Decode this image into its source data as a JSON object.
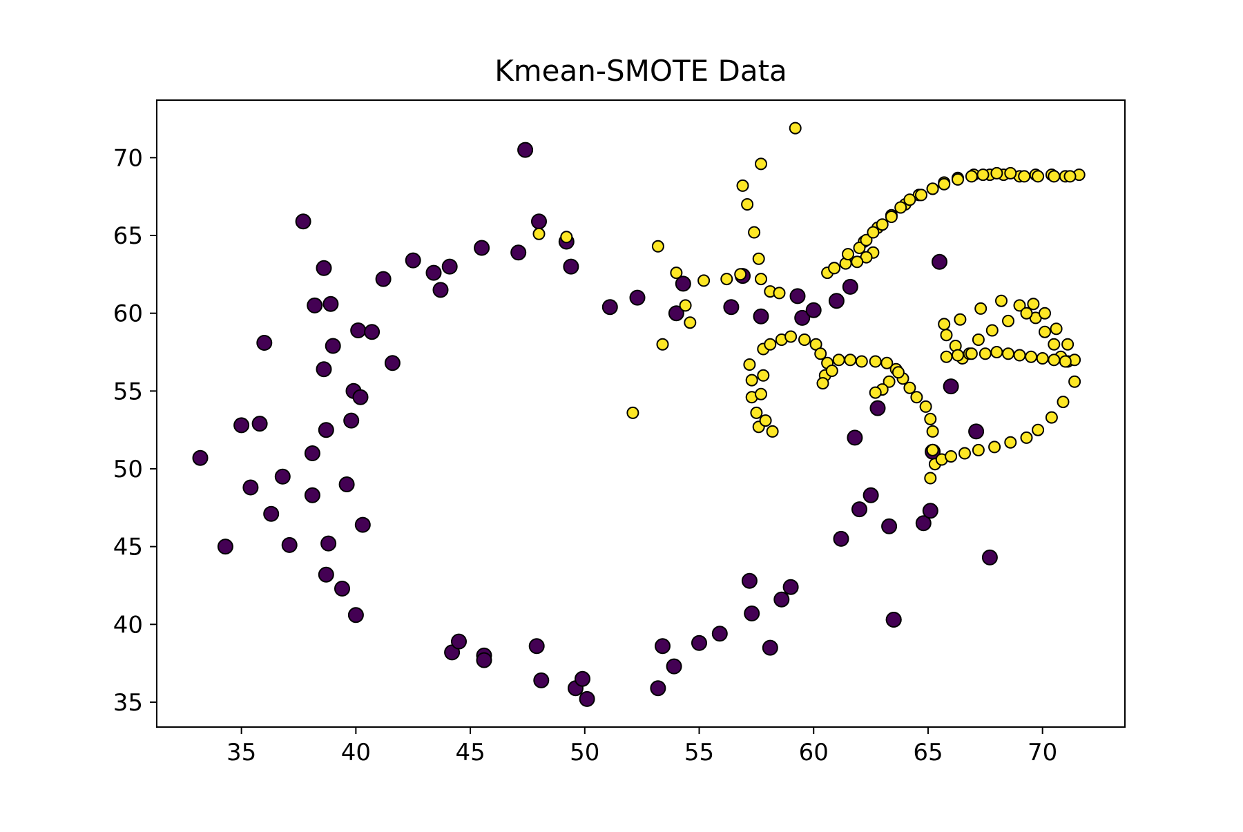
{
  "chart_data": {
    "type": "scatter",
    "title": "Kmean-SMOTE Data",
    "xlabel": "",
    "ylabel": "",
    "xlim": [
      31.3,
      73.6
    ],
    "ylim": [
      33.4,
      73.7
    ],
    "xticks": [
      35,
      40,
      45,
      50,
      55,
      60,
      65,
      70
    ],
    "yticks": [
      35,
      40,
      45,
      50,
      55,
      60,
      65,
      70
    ],
    "grid": false,
    "legend": "none",
    "colors": {
      "majority": "#440154",
      "minority": "#fde725",
      "edge": "#000000"
    },
    "series": [
      {
        "x": [
          33.2,
          34.3,
          35.0,
          35.4,
          35.8,
          36.0,
          36.3,
          36.8,
          37.1,
          37.7,
          38.1,
          38.1,
          38.2,
          38.6,
          38.6,
          38.7,
          38.7,
          38.8,
          38.9,
          39.0,
          39.4,
          39.6,
          39.8,
          39.9,
          40.0,
          40.1,
          40.2,
          40.3,
          40.7,
          41.2,
          41.6,
          42.5,
          43.4,
          43.7,
          44.1,
          44.2,
          44.5,
          45.5,
          45.6,
          45.6,
          47.1,
          47.4,
          47.9,
          48.1,
          48.0,
          49.2,
          49.6,
          49.4,
          49.9,
          50.1,
          51.1,
          52.3,
          53.2,
          53.4,
          53.9,
          54.0,
          54.3,
          55.0,
          55.9,
          56.4,
          56.9,
          57.3,
          57.7,
          58.1,
          59.0,
          59.5,
          60.0,
          61.0,
          61.2,
          61.8,
          62.0,
          62.5,
          62.8,
          63.3,
          63.5,
          64.8,
          65.1,
          65.2,
          65.5,
          66.0,
          67.1,
          67.7,
          61.6,
          63.5,
          59.3,
          58.6,
          57.2
        ],
        "y": [
          50.7,
          45.0,
          52.8,
          48.8,
          52.9,
          58.1,
          47.1,
          49.5,
          45.1,
          65.9,
          48.3,
          51.0,
          60.5,
          56.4,
          62.9,
          43.2,
          52.5,
          45.2,
          60.6,
          57.9,
          42.3,
          49.0,
          53.1,
          55.0,
          40.6,
          58.9,
          54.6,
          46.4,
          58.8,
          62.2,
          56.8,
          63.4,
          62.6,
          61.5,
          63.0,
          38.2,
          38.9,
          64.2,
          38.0,
          37.7,
          63.9,
          70.5,
          38.6,
          36.4,
          65.9,
          64.6,
          35.9,
          63.0,
          36.5,
          35.2,
          60.4,
          61.0,
          35.9,
          38.6,
          37.3,
          60.0,
          61.9,
          38.8,
          39.4,
          60.4,
          62.4,
          40.7,
          59.8,
          38.5,
          42.4,
          59.7,
          60.2,
          60.8,
          45.5,
          52.0,
          47.4,
          48.3,
          53.9,
          46.3,
          40.3,
          46.5,
          47.3,
          51.1,
          63.3,
          55.3,
          52.4,
          44.3,
          61.7,
          40.3,
          61.1,
          41.6,
          42.8
        ]
      },
      {
        "x": [
          49.2,
          48.0,
          53.2,
          53.4,
          54.0,
          54.4,
          54.6,
          55.2,
          56.2,
          56.8,
          57.7,
          58.1,
          58.5,
          57.6,
          56.9,
          57.1,
          57.4,
          59.2,
          52.1,
          57.7,
          57.6,
          57.5,
          57.3,
          57.3,
          57.2,
          57.8,
          58.1,
          58.6,
          59.0,
          59.6,
          60.1,
          60.3,
          60.6,
          60.5,
          60.4,
          60.8,
          61.1,
          61.6,
          62.1,
          62.7,
          63.2,
          63.6,
          63.9,
          64.2,
          64.5,
          64.9,
          65.1,
          65.2,
          65.2,
          65.1,
          65.3,
          65.6,
          66.0,
          66.6,
          67.2,
          67.9,
          68.6,
          69.3,
          69.8,
          70.4,
          70.9,
          71.4,
          71.1,
          70.8,
          70.5,
          70.1,
          69.7,
          69.0,
          68.2,
          67.3,
          66.4,
          65.7,
          65.8,
          66.2,
          66.5,
          66.8,
          67.2,
          67.8,
          68.5,
          69.3,
          69.6,
          70.1,
          70.6,
          71.1,
          71.4,
          71.0,
          70.5,
          70.0,
          69.5,
          69.0,
          68.5,
          68.0,
          67.5,
          66.9,
          66.3,
          65.8,
          62.6,
          62.3,
          61.9,
          61.4,
          60.9,
          60.6,
          60.9,
          61.5,
          62.2,
          62.8,
          63.4,
          64.0,
          64.6,
          65.2,
          65.7,
          66.3,
          67.0,
          67.7,
          68.3,
          69.0,
          69.7,
          70.4,
          71.0,
          71.6,
          62.0,
          62.3,
          62.6,
          63.0,
          63.4,
          63.8,
          64.2,
          64.7,
          65.2,
          65.7,
          66.3,
          66.9,
          67.4,
          68.0,
          68.6,
          69.2,
          69.8,
          70.5,
          71.2,
          57.8,
          57.7,
          57.9,
          58.2,
          63.7,
          63.3,
          63.0,
          62.7
        ],
        "y": [
          64.9,
          65.1,
          64.3,
          58.0,
          62.6,
          60.5,
          59.4,
          62.1,
          62.2,
          62.5,
          62.2,
          61.4,
          61.3,
          63.5,
          68.2,
          67.0,
          65.2,
          71.9,
          53.6,
          69.6,
          52.7,
          53.6,
          54.6,
          55.7,
          56.7,
          57.7,
          58.0,
          58.3,
          58.5,
          58.3,
          58.0,
          57.4,
          56.8,
          56.0,
          55.5,
          56.3,
          57.0,
          57.0,
          56.9,
          56.9,
          56.8,
          56.4,
          55.8,
          55.2,
          54.6,
          54.0,
          53.2,
          52.4,
          51.2,
          49.4,
          50.3,
          50.6,
          50.8,
          51.0,
          51.2,
          51.4,
          51.7,
          52.0,
          52.5,
          53.3,
          54.3,
          55.6,
          56.9,
          57.2,
          58.0,
          58.8,
          59.7,
          60.5,
          60.8,
          60.3,
          59.6,
          59.3,
          58.6,
          57.9,
          57.1,
          57.4,
          58.3,
          58.9,
          59.5,
          60.0,
          60.6,
          60.0,
          59.0,
          58.0,
          57.0,
          56.9,
          57.0,
          57.1,
          57.2,
          57.3,
          57.4,
          57.5,
          57.4,
          57.4,
          57.3,
          57.2,
          63.9,
          63.6,
          63.3,
          63.2,
          62.9,
          62.6,
          62.9,
          63.8,
          64.6,
          65.5,
          66.3,
          67.0,
          67.6,
          68.0,
          68.4,
          68.7,
          68.9,
          68.9,
          68.9,
          68.8,
          68.9,
          68.9,
          68.8,
          68.9,
          64.2,
          64.7,
          65.2,
          65.7,
          66.2,
          66.8,
          67.3,
          67.6,
          68.0,
          68.3,
          68.6,
          68.8,
          68.9,
          69.0,
          69.0,
          68.8,
          68.8,
          68.8,
          68.8,
          56.0,
          54.8,
          53.1,
          52.4,
          56.2,
          55.6,
          55.1,
          54.9
        ]
      }
    ]
  }
}
